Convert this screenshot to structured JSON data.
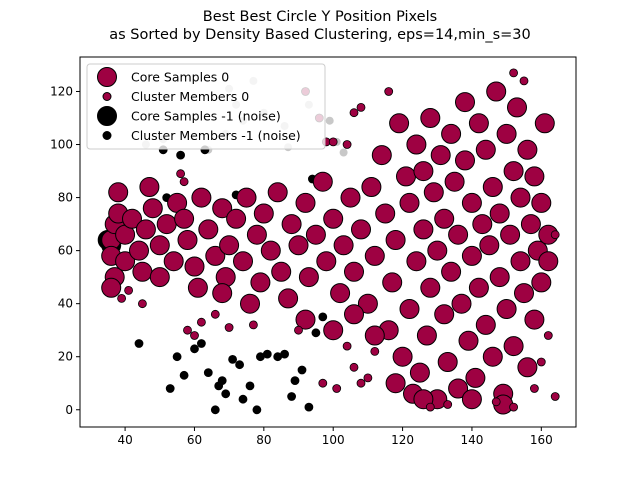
{
  "chart_data": {
    "type": "scatter",
    "title_line1": "Best Best Circle Y Position Pixels",
    "title_line2": "as Sorted by Density Based Clustering, eps=14,min_s=30",
    "xlabel": "",
    "ylabel": "",
    "xlim": [
      27,
      170
    ],
    "ylim": [
      -6.5,
      133
    ],
    "x_ticks": [
      40,
      60,
      80,
      100,
      120,
      140,
      160
    ],
    "y_ticks": [
      0,
      20,
      40,
      60,
      80,
      100,
      120
    ],
    "grid": false,
    "legend_position": "top-left",
    "colors": {
      "cluster0": "#9e0142",
      "noise": "#000000",
      "outline": "#000000",
      "background_points": "#c8c8c8"
    },
    "legend": [
      {
        "label": "Core Samples 0",
        "color": "#9e0142",
        "marker": "large"
      },
      {
        "label": "Cluster Members 0",
        "color": "#9e0142",
        "marker": "small"
      },
      {
        "label": "Core Samples -1 (noise)",
        "color": "#000000",
        "marker": "large"
      },
      {
        "label": "Cluster Members -1 (noise)",
        "color": "#000000",
        "marker": "small"
      }
    ],
    "series": [
      {
        "name": "Core Samples 0",
        "color": "#9e0142",
        "marker": "large",
        "points": [
          [
            36,
            64
          ],
          [
            37,
            70
          ],
          [
            36,
            58
          ],
          [
            38,
            74
          ],
          [
            37,
            50
          ],
          [
            36,
            46
          ],
          [
            38,
            82
          ],
          [
            40,
            66
          ],
          [
            42,
            72
          ],
          [
            40,
            56
          ],
          [
            44,
            60
          ],
          [
            46,
            68
          ],
          [
            45,
            52
          ],
          [
            48,
            76
          ],
          [
            47,
            84
          ],
          [
            50,
            62
          ],
          [
            52,
            70
          ],
          [
            50,
            50
          ],
          [
            54,
            56
          ],
          [
            55,
            78
          ],
          [
            58,
            64
          ],
          [
            57,
            72
          ],
          [
            60,
            54
          ],
          [
            62,
            80
          ],
          [
            61,
            46
          ],
          [
            64,
            68
          ],
          [
            66,
            58
          ],
          [
            68,
            76
          ],
          [
            70,
            62
          ],
          [
            69,
            50
          ],
          [
            72,
            72
          ],
          [
            74,
            56
          ],
          [
            75,
            80
          ],
          [
            78,
            66
          ],
          [
            79,
            48
          ],
          [
            80,
            74
          ],
          [
            82,
            60
          ],
          [
            84,
            82
          ],
          [
            85,
            52
          ],
          [
            88,
            70
          ],
          [
            87,
            42
          ],
          [
            90,
            62
          ],
          [
            92,
            78
          ],
          [
            93,
            50
          ],
          [
            95,
            66
          ],
          [
            97,
            86
          ],
          [
            98,
            56
          ],
          [
            100,
            72
          ],
          [
            102,
            44
          ],
          [
            103,
            62
          ],
          [
            105,
            80
          ],
          [
            106,
            52
          ],
          [
            108,
            68
          ],
          [
            110,
            40
          ],
          [
            111,
            84
          ],
          [
            112,
            58
          ],
          [
            114,
            96
          ],
          [
            115,
            74
          ],
          [
            116,
            30
          ],
          [
            117,
            48
          ],
          [
            118,
            64
          ],
          [
            119,
            108
          ],
          [
            120,
            20
          ],
          [
            121,
            88
          ],
          [
            122,
            38
          ],
          [
            122,
            78
          ],
          [
            123,
            6
          ],
          [
            124,
            56
          ],
          [
            124,
            100
          ],
          [
            125,
            14
          ],
          [
            126,
            68
          ],
          [
            126,
            90
          ],
          [
            127,
            28
          ],
          [
            128,
            46
          ],
          [
            128,
            110
          ],
          [
            129,
            82
          ],
          [
            130,
            4
          ],
          [
            130,
            60
          ],
          [
            131,
            96
          ],
          [
            132,
            36
          ],
          [
            132,
            72
          ],
          [
            133,
            18
          ],
          [
            134,
            104
          ],
          [
            134,
            52
          ],
          [
            135,
            86
          ],
          [
            136,
            8
          ],
          [
            136,
            66
          ],
          [
            137,
            40
          ],
          [
            138,
            116
          ],
          [
            138,
            94
          ],
          [
            139,
            26
          ],
          [
            140,
            58
          ],
          [
            140,
            78
          ],
          [
            141,
            12
          ],
          [
            142,
            108
          ],
          [
            142,
            46
          ],
          [
            143,
            70
          ],
          [
            144,
            32
          ],
          [
            144,
            98
          ],
          [
            145,
            62
          ],
          [
            146,
            84
          ],
          [
            146,
            20
          ],
          [
            147,
            120
          ],
          [
            148,
            50
          ],
          [
            148,
            74
          ],
          [
            149,
            6
          ],
          [
            150,
            104
          ],
          [
            150,
            38
          ],
          [
            151,
            66
          ],
          [
            152,
            90
          ],
          [
            152,
            24
          ],
          [
            153,
            114
          ],
          [
            154,
            56
          ],
          [
            154,
            80
          ],
          [
            155,
            44
          ],
          [
            156,
            16
          ],
          [
            156,
            98
          ],
          [
            157,
            70
          ],
          [
            158,
            34
          ],
          [
            158,
            88
          ],
          [
            159,
            60
          ],
          [
            160,
            48
          ],
          [
            160,
            78
          ],
          [
            161,
            108
          ],
          [
            162,
            56
          ],
          [
            162,
            66
          ],
          [
            76,
            40
          ],
          [
            92,
            34
          ],
          [
            100,
            30
          ],
          [
            68,
            44
          ],
          [
            126,
            4
          ],
          [
            118,
            10
          ],
          [
            140,
            4
          ],
          [
            149,
            2
          ],
          [
            112,
            28
          ],
          [
            106,
            36
          ]
        ]
      },
      {
        "name": "Cluster Members 0",
        "color": "#9e0142",
        "marker": "small",
        "points": [
          [
            39,
            42
          ],
          [
            45,
            40
          ],
          [
            41,
            45
          ],
          [
            58,
            30
          ],
          [
            60,
            28
          ],
          [
            62,
            33
          ],
          [
            66,
            36
          ],
          [
            70,
            31
          ],
          [
            77,
            32
          ],
          [
            90,
            30
          ],
          [
            104,
            24
          ],
          [
            106,
            16
          ],
          [
            108,
            10
          ],
          [
            110,
            12
          ],
          [
            112,
            22
          ],
          [
            97,
            10
          ],
          [
            101,
            8
          ],
          [
            128,
            1
          ],
          [
            133,
            2
          ],
          [
            147,
            3
          ],
          [
            152,
            1
          ],
          [
            158,
            8
          ],
          [
            160,
            18
          ],
          [
            162,
            28
          ],
          [
            164,
            5
          ],
          [
            92,
            120
          ],
          [
            96,
            110
          ],
          [
            106,
            112
          ],
          [
            104,
            100
          ],
          [
            152,
            127
          ],
          [
            155,
            124
          ],
          [
            98,
            101
          ],
          [
            57,
            86
          ],
          [
            56,
            89
          ],
          [
            116,
            120
          ],
          [
            108,
            114
          ],
          [
            164,
            66
          ],
          [
            100,
            101
          ]
        ]
      },
      {
        "name": "Core Samples -1 (noise)",
        "color": "#000000",
        "marker": "large",
        "points": [
          [
            35,
            64
          ],
          [
            36,
            62
          ]
        ]
      },
      {
        "name": "Cluster Members -1 (noise)",
        "color": "#000000",
        "marker": "small",
        "points": [
          [
            44,
            25
          ],
          [
            53,
            8
          ],
          [
            55,
            20
          ],
          [
            57,
            13
          ],
          [
            60,
            23
          ],
          [
            62,
            25
          ],
          [
            64,
            14
          ],
          [
            66,
            0
          ],
          [
            67,
            9
          ],
          [
            68,
            11
          ],
          [
            69,
            6
          ],
          [
            71,
            19
          ],
          [
            73,
            17
          ],
          [
            74,
            4
          ],
          [
            76,
            9
          ],
          [
            78,
            0
          ],
          [
            79,
            20
          ],
          [
            81,
            21
          ],
          [
            84,
            20
          ],
          [
            86,
            21
          ],
          [
            88,
            5
          ],
          [
            89,
            11
          ],
          [
            91,
            15
          ],
          [
            93,
            1
          ],
          [
            95,
            29
          ],
          [
            97,
            35
          ],
          [
            56,
            96
          ],
          [
            63,
            98
          ],
          [
            51,
            98
          ],
          [
            94,
            87
          ],
          [
            72,
            81
          ],
          [
            52,
            80
          ],
          [
            48,
            83
          ]
        ]
      },
      {
        "name": "",
        "color": "#c8c8c8",
        "marker": "small",
        "points": [
          [
            70,
            121
          ],
          [
            77,
            124
          ],
          [
            46,
            100
          ],
          [
            51,
            102
          ],
          [
            72,
            115
          ],
          [
            80,
            112
          ],
          [
            86,
            107
          ],
          [
            64,
            98
          ],
          [
            69,
            104
          ],
          [
            74,
            109
          ],
          [
            93,
            115
          ],
          [
            101,
            101
          ],
          [
            103,
            97
          ],
          [
            99,
            109
          ],
          [
            87,
            99
          ]
        ]
      }
    ]
  }
}
